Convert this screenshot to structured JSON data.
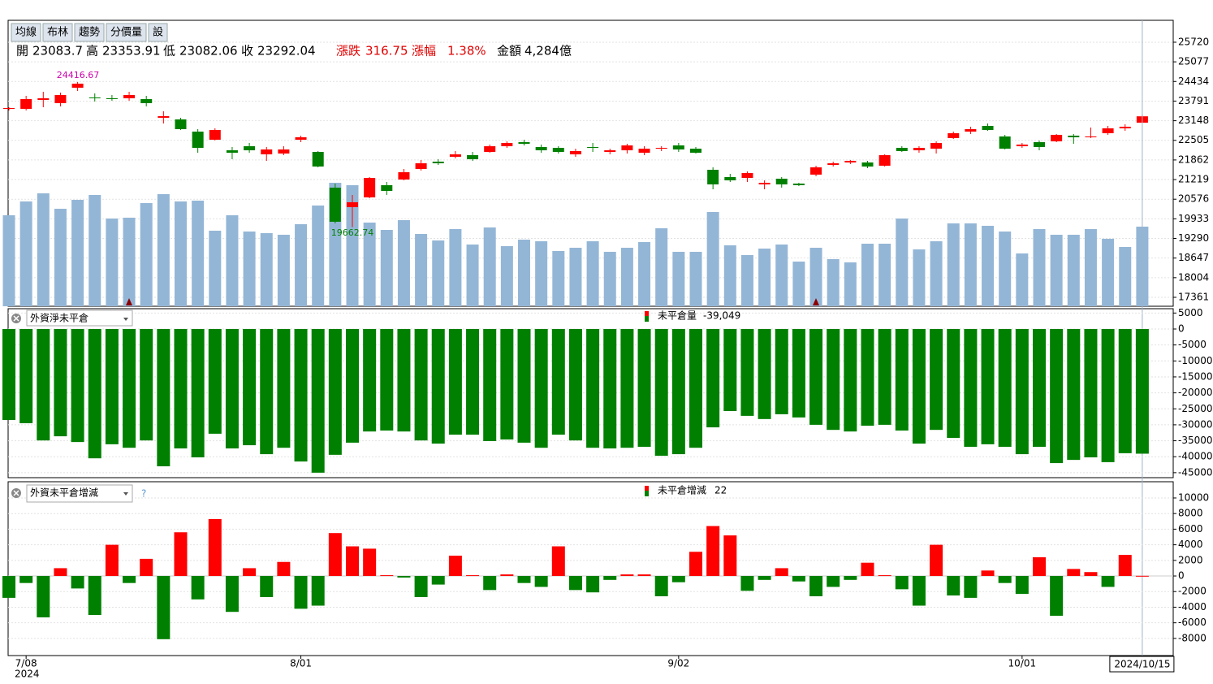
{
  "toolbar": [
    "均線",
    "布林",
    "趨勢",
    "分價量",
    "設"
  ],
  "info": {
    "open_label": "開",
    "high_label": "高",
    "low_label": "低",
    "close_label": "收",
    "change": {
      "label": "漲跌",
      "value": 316.75
    },
    "pct": {
      "label": "漲幅",
      "value": 1.38,
      "value_label": "1.38%"
    },
    "amount": {
      "label": "金額",
      "value": "4,284億"
    }
  },
  "chart_data": [
    {
      "type": "candlestick",
      "up_color": "#ff0000",
      "down_color": "#008000",
      "volume_color": "#94b6d6",
      "categories": [
        null,
        "7/08",
        null,
        null,
        null,
        null,
        null,
        null,
        null,
        null,
        null,
        null,
        null,
        null,
        null,
        null,
        null,
        "8/01",
        null,
        null,
        null,
        null,
        null,
        null,
        null,
        null,
        null,
        null,
        null,
        null,
        null,
        null,
        null,
        null,
        null,
        null,
        null,
        null,
        null,
        "9/02",
        null,
        null,
        null,
        null,
        null,
        null,
        null,
        null,
        null,
        null,
        null,
        null,
        null,
        null,
        null,
        null,
        null,
        null,
        null,
        "10/01",
        null,
        null,
        null,
        null,
        null,
        null,
        "2024/10/15"
      ],
      "year": "2024",
      "candles": [
        [
          23537,
          23590,
          23484,
          23563
        ],
        [
          23537,
          23963,
          23484,
          23856
        ],
        [
          23830,
          24096,
          23590,
          23883
        ],
        [
          23723,
          24069,
          23617,
          23989
        ],
        [
          24229,
          24416.67,
          24122,
          24362
        ],
        [
          23910,
          24043,
          23776,
          23883
        ],
        [
          23883,
          23989,
          23803,
          23856
        ],
        [
          23883,
          24096,
          23803,
          23989
        ],
        [
          23856,
          23963,
          23617,
          23723
        ],
        [
          23244,
          23457,
          23058,
          23297
        ],
        [
          23191,
          23244,
          22845,
          22871
        ],
        [
          22791,
          22871,
          22099,
          22259
        ],
        [
          22525,
          22898,
          22499,
          22845
        ],
        [
          22179,
          22286,
          21886,
          22099
        ],
        [
          22312,
          22419,
          22099,
          22179
        ],
        [
          22046,
          22286,
          21833,
          22206
        ],
        [
          22073,
          22312,
          22020,
          22206
        ],
        [
          22525,
          22658,
          22445,
          22605
        ],
        [
          22126,
          22153,
          21620,
          21647
        ],
        [
          20955,
          21088,
          19783,
          19837
        ],
        [
          20316,
          20715,
          19662.74,
          20476
        ],
        [
          20635,
          21301,
          20609,
          21274
        ],
        [
          21035,
          21141,
          20715,
          20848
        ],
        [
          21221,
          21567,
          21194,
          21460
        ],
        [
          21567,
          21860,
          21514,
          21753
        ],
        [
          21807,
          21886,
          21700,
          21753
        ],
        [
          21966,
          22153,
          21913,
          22046
        ],
        [
          22020,
          22126,
          21833,
          21886
        ],
        [
          22126,
          22366,
          22099,
          22312
        ],
        [
          22312,
          22472,
          22259,
          22419
        ],
        [
          22445,
          22525,
          22339,
          22392
        ],
        [
          22286,
          22366,
          22099,
          22179
        ],
        [
          22259,
          22312,
          22073,
          22126
        ],
        [
          22046,
          22232,
          21966,
          22153
        ],
        [
          22286,
          22419,
          22126,
          22259
        ],
        [
          22126,
          22232,
          22046,
          22179
        ],
        [
          22179,
          22392,
          22073,
          22339
        ],
        [
          22099,
          22312,
          22020,
          22232
        ],
        [
          22232,
          22312,
          22153,
          22259
        ],
        [
          22339,
          22419,
          22126,
          22206
        ],
        [
          22232,
          22286,
          22073,
          22099
        ],
        [
          21540,
          21620,
          20901,
          21061
        ],
        [
          21301,
          21407,
          21141,
          21194
        ],
        [
          21274,
          21487,
          21141,
          21434
        ],
        [
          21061,
          21194,
          20901,
          21114
        ],
        [
          21248,
          21301,
          20955,
          21061
        ],
        [
          21088,
          21114,
          21008,
          21035
        ],
        [
          21381,
          21673,
          21327,
          21620
        ],
        [
          21700,
          21807,
          21647,
          21753
        ],
        [
          21780,
          21860,
          21727,
          21833
        ],
        [
          21780,
          21833,
          21594,
          21647
        ],
        [
          21673,
          22046,
          21647,
          22020
        ],
        [
          22259,
          22312,
          22126,
          22153
        ],
        [
          22179,
          22312,
          22099,
          22259
        ],
        [
          22232,
          22472,
          22073,
          22419
        ],
        [
          22579,
          22791,
          22552,
          22738
        ],
        [
          22791,
          22951,
          22712,
          22871
        ],
        [
          22978,
          23058,
          22818,
          22845
        ],
        [
          22632,
          22685,
          22206,
          22232
        ],
        [
          22312,
          22419,
          22259,
          22366
        ],
        [
          22445,
          22499,
          22179,
          22286
        ],
        [
          22472,
          22712,
          22445,
          22685
        ],
        [
          22658,
          22712,
          22392,
          22605
        ],
        [
          22605,
          22925,
          22579,
          22632
        ],
        [
          22738,
          22978,
          22685,
          22898
        ],
        [
          22898,
          23031,
          22818,
          22951
        ],
        [
          23083.7,
          23353.91,
          23082.06,
          23292.04
        ]
      ],
      "volume": [
        20050,
        20502,
        20768,
        20263,
        20555,
        20715,
        19943,
        19970,
        20449,
        20742,
        20502,
        20529,
        19544,
        20050,
        19517,
        19464,
        19411,
        19757,
        20369,
        21114,
        21035,
        19810,
        19570,
        19890,
        19437,
        19224,
        19597,
        19091,
        19650,
        19038,
        19251,
        19198,
        18878,
        18985,
        19198,
        18852,
        18985,
        19171,
        19624,
        18852,
        18852,
        20156,
        19065,
        18745,
        18958,
        19091,
        18532,
        18985,
        18612,
        18506,
        19118,
        19118,
        19943,
        18932,
        19198,
        19783,
        19783,
        19704,
        19517,
        18798,
        19597,
        19411,
        19411,
        19597,
        19278,
        19011,
        19677
      ],
      "ylim": [
        17068,
        26438
      ],
      "yticks": [
        25720,
        25077,
        24434,
        23791,
        23148,
        22505,
        21862,
        21219,
        20576,
        19933,
        19290,
        18647,
        18004,
        17361
      ],
      "grid": true
    },
    {
      "type": "bar",
      "selector": "外資淨未平倉",
      "name": "未平倉量",
      "color": "#008000",
      "values": [
        -28500,
        -29500,
        -34900,
        -33600,
        -35400,
        -40500,
        -36100,
        -37200,
        -34900,
        -43000,
        -37400,
        -40200,
        -32800,
        -37400,
        -36400,
        -39200,
        -37200,
        -41500,
        -45000,
        -39400,
        -35600,
        -32100,
        -31800,
        -32100,
        -34900,
        -35900,
        -33100,
        -33100,
        -35100,
        -34600,
        -35600,
        -37200,
        -33100,
        -34900,
        -37200,
        -37400,
        -37200,
        -36900,
        -39700,
        -39200,
        -37200,
        -30800,
        -25700,
        -27200,
        -28200,
        -26700,
        -27700,
        -30000,
        -31600,
        -32100,
        -30300,
        -30000,
        -31800,
        -35900,
        -31600,
        -34100,
        -36900,
        -36100,
        -36900,
        -39200,
        -36900,
        -42000,
        -41000,
        -40200,
        -41700,
        -38900,
        -39049
      ],
      "value_labels": [
        null,
        null,
        null,
        null,
        null,
        null,
        null,
        null,
        null,
        null,
        null,
        null,
        null,
        null,
        null,
        null,
        null,
        null,
        null,
        null,
        null,
        null,
        null,
        null,
        null,
        null,
        null,
        null,
        null,
        null,
        null,
        null,
        null,
        null,
        null,
        null,
        null,
        null,
        null,
        null,
        null,
        null,
        null,
        null,
        null,
        null,
        null,
        null,
        null,
        null,
        null,
        null,
        null,
        null,
        null,
        null,
        null,
        null,
        null,
        null,
        null,
        null,
        null,
        null,
        null,
        null,
        "-39,049"
      ],
      "ylim": [
        -46560,
        6360
      ],
      "yticks": [
        5000,
        0,
        -5000,
        -10000,
        -15000,
        -20000,
        -25000,
        -30000,
        -35000,
        -40000,
        -45000
      ],
      "grid": true
    },
    {
      "type": "signed_bar",
      "selector": "外資未平倉增減",
      "help": "?",
      "name": "未平倉增減",
      "up_color": "#ff0000",
      "down_color": "#008000",
      "values": [
        -2800,
        -900,
        -5300,
        1000,
        -1600,
        -5000,
        4000,
        -900,
        2200,
        -8100,
        5600,
        -3000,
        7300,
        -4600,
        1000,
        -2700,
        1800,
        -4200,
        -3800,
        5500,
        3800,
        3500,
        100,
        -200,
        -2700,
        -1100,
        2600,
        100,
        -1800,
        200,
        -900,
        -1400,
        3800,
        -1800,
        -2100,
        -500,
        200,
        200,
        -2600,
        -800,
        3100,
        6400,
        5200,
        -1900,
        -500,
        1000,
        -700,
        -2600,
        -1400,
        -500,
        1700,
        100,
        -1700,
        -3800,
        4000,
        -2500,
        -2800,
        700,
        -900,
        -2300,
        2400,
        -5100,
        900,
        500,
        -1400,
        2700,
        22
      ],
      "ylim": [
        -10200,
        12080
      ],
      "yticks": [
        10000,
        8000,
        6000,
        4000,
        2000,
        0,
        -2000,
        -4000,
        -6000,
        -8000
      ],
      "grid": true
    }
  ]
}
